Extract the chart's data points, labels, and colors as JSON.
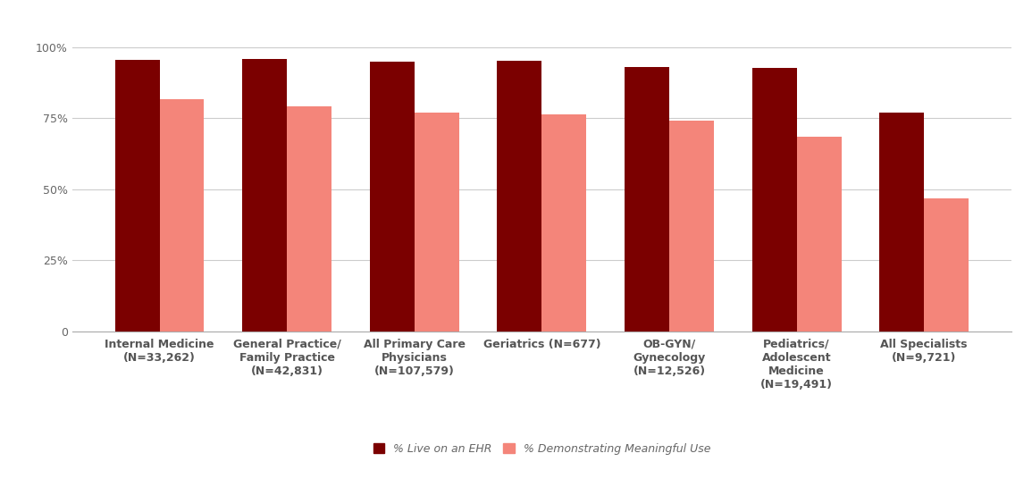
{
  "categories": [
    "Internal Medicine\n(N=33,262)",
    "General Practice/\nFamily Practice\n(N=42,831)",
    "All Primary Care\nPhysicians\n(N=107,579)",
    "Geriatrics (N=677)",
    "OB-GYN/\nGynecology\n(N=12,526)",
    "Pediatrics/\nAdolescent\nMedicine\n(N=19,491)",
    "All Specialists\n(N=9,721)"
  ],
  "ehr_values": [
    0.955,
    0.958,
    0.948,
    0.952,
    0.93,
    0.928,
    0.77
  ],
  "mu_values": [
    0.815,
    0.79,
    0.768,
    0.763,
    0.742,
    0.685,
    0.468
  ],
  "ehr_color": "#7B0000",
  "mu_color": "#F4857A",
  "yticks": [
    0,
    0.25,
    0.5,
    0.75,
    1.0
  ],
  "yticklabels": [
    "0",
    "25%",
    "50%",
    "75%",
    "100%"
  ],
  "ylim": [
    0,
    1.08
  ],
  "bar_width": 0.35,
  "legend_labels": [
    "% Live on an EHR",
    "% Demonstrating Meaningful Use"
  ],
  "bg_color": "#FFFFFF",
  "grid_color": "#CCCCCC",
  "tick_color": "#666666",
  "xtick_color": "#555555",
  "label_fontsize": 9,
  "xtick_fontsize": 9,
  "legend_fontsize": 9
}
